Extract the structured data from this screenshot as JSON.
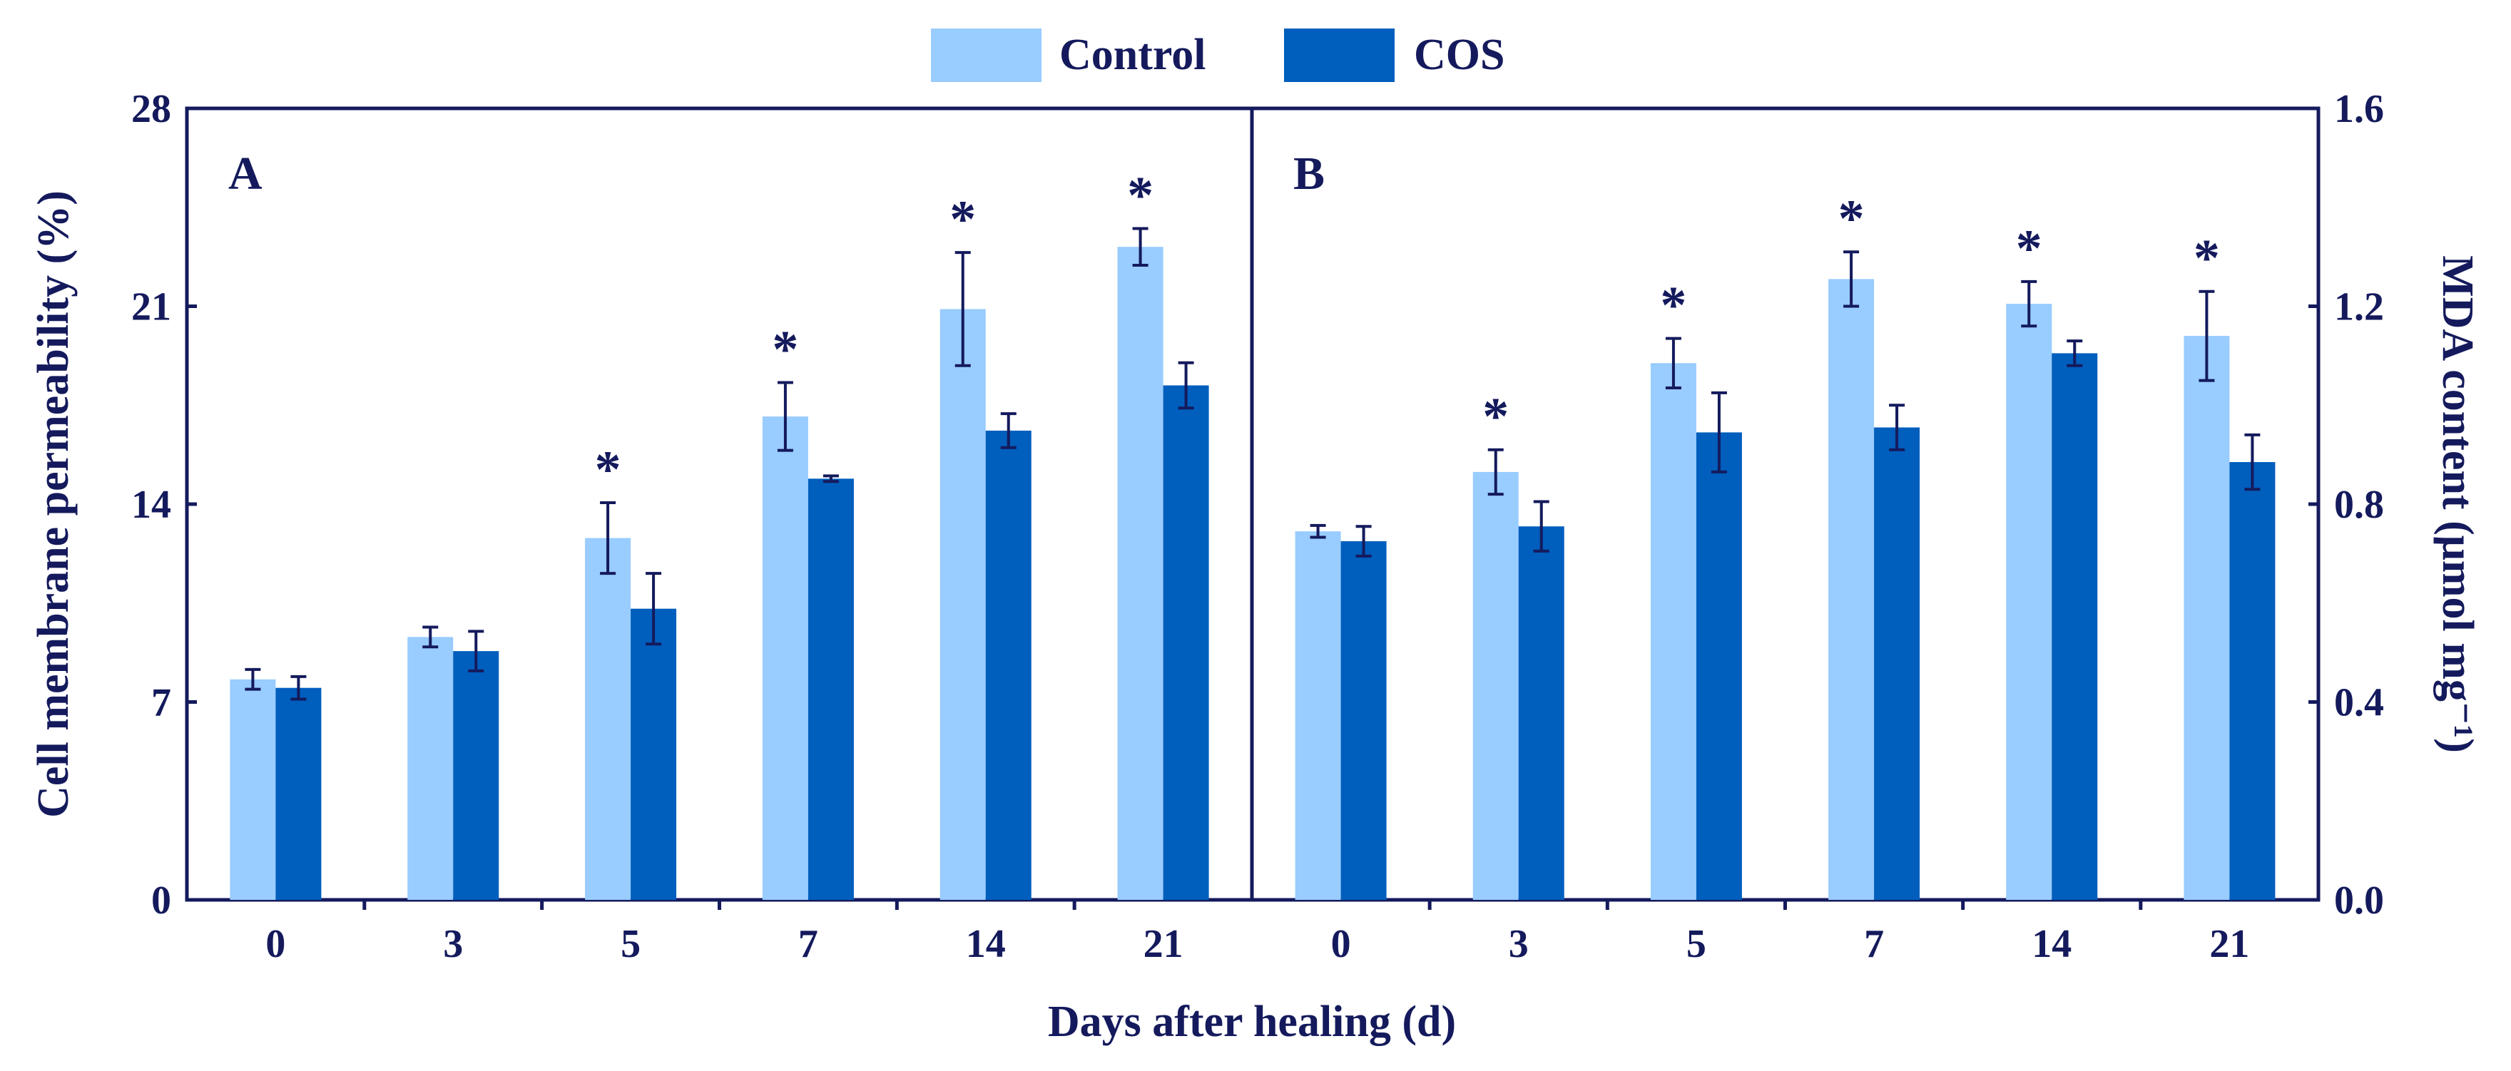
{
  "colors": {
    "control": "#99ccff",
    "cos": "#005ebd",
    "axis": "#141a5c"
  },
  "legend": [
    {
      "name": "Control",
      "color_key": "control"
    },
    {
      "name": "COS",
      "color_key": "cos"
    }
  ],
  "xlabel": "Days after healing (d)",
  "chart_data": [
    {
      "panel": "A",
      "type": "bar",
      "categories": [
        "0",
        "3",
        "5",
        "7",
        "14",
        "21"
      ],
      "ylabel": "Cell membrane permeability (%)",
      "ylim": [
        0,
        28
      ],
      "yticks": [
        "0",
        "7",
        "14",
        "21",
        "28"
      ],
      "ytick_values": [
        0,
        7,
        14,
        21,
        28
      ],
      "series": [
        {
          "name": "Control",
          "values": [
            7.8,
            9.3,
            12.8,
            17.1,
            20.9,
            23.1
          ],
          "errors": [
            0.35,
            0.35,
            1.25,
            1.2,
            2.0,
            0.65
          ]
        },
        {
          "name": "COS",
          "values": [
            7.5,
            8.8,
            10.3,
            14.9,
            16.6,
            18.2
          ],
          "errors": [
            0.4,
            0.7,
            1.25,
            0.1,
            0.6,
            0.8
          ]
        }
      ],
      "significance": [
        "",
        "",
        "*",
        "*",
        "*",
        "*"
      ]
    },
    {
      "panel": "B",
      "type": "bar",
      "categories": [
        "0",
        "3",
        "5",
        "7",
        "14",
        "21"
      ],
      "ylabel": "MDA content (μmol mg⁻¹)",
      "ylim": [
        0,
        1.6
      ],
      "yticks": [
        "0.0",
        "0.4",
        "0.8",
        "1.2",
        "1.6"
      ],
      "ytick_values": [
        0,
        0.4,
        0.8,
        1.2,
        1.6
      ],
      "series": [
        {
          "name": "Control",
          "values": [
            0.745,
            0.865,
            1.085,
            1.255,
            1.205,
            1.14
          ],
          "errors": [
            0.012,
            0.045,
            0.05,
            0.055,
            0.045,
            0.09
          ]
        },
        {
          "name": "COS",
          "values": [
            0.725,
            0.755,
            0.945,
            0.955,
            1.105,
            0.885
          ],
          "errors": [
            0.03,
            0.05,
            0.08,
            0.045,
            0.025,
            0.055
          ]
        }
      ],
      "significance": [
        "",
        "*",
        "*",
        "*",
        "*",
        "*"
      ]
    }
  ]
}
